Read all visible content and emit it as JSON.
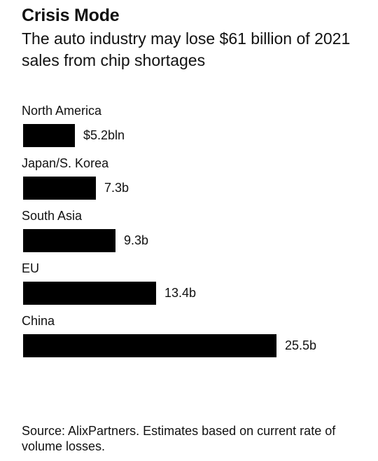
{
  "header": {
    "title": "Crisis Mode",
    "subtitle": "The auto industry may lose $61 billion of 2021 sales from chip shortages"
  },
  "chart_data": {
    "type": "bar",
    "orientation": "horizontal",
    "categories": [
      "North America",
      "Japan/S. Korea",
      "South Asia",
      "EU",
      "China"
    ],
    "values": [
      5.2,
      7.3,
      9.3,
      13.4,
      25.5
    ],
    "value_labels": [
      "$5.2bln",
      "7.3b",
      "9.3b",
      "13.4b",
      "25.5b"
    ],
    "unit": "billion USD",
    "bar_color": "#000000",
    "xlim": [
      0,
      25.5
    ],
    "grid": false,
    "legend": "none"
  },
  "footer": {
    "source": "Source: AlixPartners. Estimates based on current rate of volume losses."
  }
}
